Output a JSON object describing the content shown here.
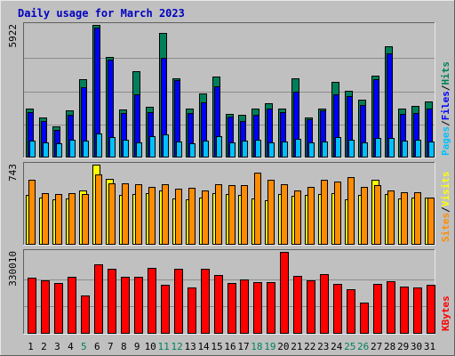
{
  "title": "Daily usage for March 2023",
  "colors": {
    "background": "#c0c0c0",
    "frame_light": "#e8e8e8",
    "frame_dark": "#606060",
    "title": "#0000c0",
    "hits": "#00805a",
    "files": "#0000ff",
    "pages": "#00c0ff",
    "visits": "#ffff00",
    "sites": "#ff8c00",
    "kbytes": "#ff0000",
    "weekend_label": "#00805a",
    "weekday_label": "#000000"
  },
  "chart_data": [
    {
      "type": "bar",
      "name": "hits-files-pages",
      "ymax_label": "5922",
      "ylim": [
        0,
        5922
      ],
      "axis_label_parts": [
        "Pages",
        "/",
        "Files",
        "/",
        "Hits"
      ],
      "categories": [
        "1",
        "2",
        "3",
        "4",
        "5",
        "6",
        "7",
        "8",
        "9",
        "10",
        "11",
        "12",
        "13",
        "14",
        "15",
        "16",
        "17",
        "18",
        "19",
        "20",
        "21",
        "22",
        "23",
        "24",
        "25",
        "26",
        "27",
        "28",
        "29",
        "30",
        "31"
      ],
      "series": [
        {
          "name": "Hits",
          "values": [
            2180,
            1770,
            1400,
            2090,
            3500,
            5922,
            4500,
            2160,
            3870,
            2260,
            5570,
            3520,
            2180,
            2860,
            3620,
            1940,
            1890,
            2200,
            2420,
            2180,
            3530,
            1800,
            2200,
            3360,
            2990,
            2570,
            3670,
            4960,
            2200,
            2290,
            2500
          ]
        },
        {
          "name": "Files",
          "values": [
            2030,
            1630,
            1250,
            1890,
            3150,
            5790,
            4370,
            1990,
            2840,
            2040,
            4450,
            3450,
            1990,
            2460,
            3180,
            1840,
            1630,
            1920,
            2200,
            2020,
            2930,
            1720,
            2090,
            2810,
            2760,
            2350,
            3500,
            4650,
            1960,
            1970,
            2180
          ]
        },
        {
          "name": "Pages",
          "values": [
            740,
            690,
            650,
            810,
            750,
            1090,
            920,
            780,
            670,
            940,
            1030,
            730,
            640,
            740,
            940,
            690,
            750,
            780,
            690,
            730,
            830,
            690,
            720,
            900,
            800,
            660,
            860,
            860,
            760,
            780,
            720
          ]
        }
      ]
    },
    {
      "type": "bar",
      "name": "visits-sites",
      "ymax_label": "743",
      "ylim": [
        0,
        743
      ],
      "axis_label_parts": [
        "Sites",
        "/",
        "Visits"
      ],
      "categories": [
        "1",
        "2",
        "3",
        "4",
        "5",
        "6",
        "7",
        "8",
        "9",
        "10",
        "11",
        "12",
        "13",
        "14",
        "15",
        "16",
        "17",
        "18",
        "19",
        "20",
        "21",
        "22",
        "23",
        "24",
        "25",
        "26",
        "27",
        "28",
        "29",
        "30",
        "31"
      ],
      "series": [
        {
          "name": "Visits",
          "values": [
            460,
            440,
            420,
            430,
            500,
            743,
            610,
            460,
            470,
            480,
            500,
            430,
            420,
            440,
            480,
            470,
            460,
            430,
            410,
            470,
            450,
            460,
            470,
            480,
            420,
            460,
            600,
            470,
            430,
            440,
            440
          ]
        },
        {
          "name": "Sites",
          "values": [
            600,
            480,
            470,
            480,
            470,
            650,
            570,
            570,
            560,
            540,
            560,
            520,
            530,
            500,
            560,
            550,
            550,
            670,
            600,
            560,
            500,
            540,
            600,
            590,
            630,
            540,
            550,
            500,
            490,
            490,
            440
          ]
        }
      ]
    },
    {
      "type": "bar",
      "name": "kbytes",
      "ymax_label": "330010",
      "ylim": [
        0,
        330010
      ],
      "axis_label_parts": [
        "KBytes"
      ],
      "categories": [
        "1",
        "2",
        "3",
        "4",
        "5",
        "6",
        "7",
        "8",
        "9",
        "10",
        "11",
        "12",
        "13",
        "14",
        "15",
        "16",
        "17",
        "18",
        "19",
        "20",
        "21",
        "22",
        "23",
        "24",
        "25",
        "26",
        "27",
        "28",
        "29",
        "30",
        "31"
      ],
      "series": [
        {
          "name": "KBytes",
          "values": [
            225000,
            215000,
            205000,
            230000,
            155000,
            280000,
            262000,
            230000,
            230000,
            267000,
            197000,
            262000,
            185000,
            262000,
            235000,
            205000,
            220000,
            207000,
            207000,
            330010,
            232000,
            215000,
            240000,
            200000,
            180000,
            127000,
            202000,
            212000,
            190000,
            185000,
            197000
          ]
        }
      ]
    }
  ],
  "weekend_days": [
    5,
    11,
    12,
    18,
    19,
    25,
    26
  ]
}
